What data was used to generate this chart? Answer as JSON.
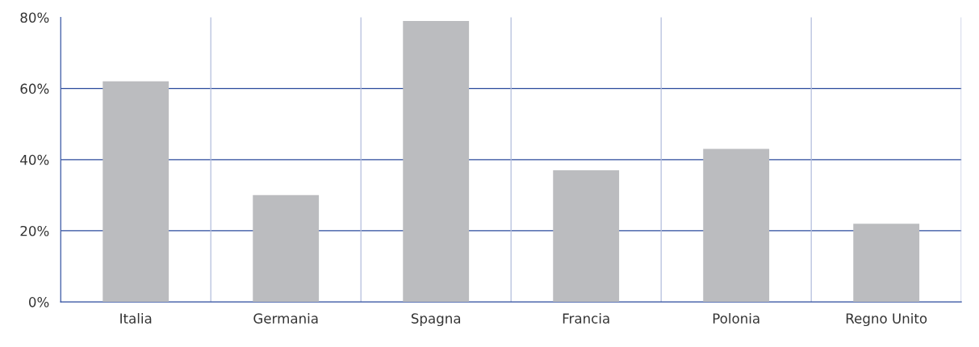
{
  "chart_data": {
    "type": "bar",
    "categories": [
      "Italia",
      "Germania",
      "Spagna",
      "Francia",
      "Polonia",
      "Regno Unito"
    ],
    "values": [
      62,
      30,
      79,
      37,
      43,
      22
    ],
    "color": "#bbbcbf",
    "ylim": [
      0,
      80
    ],
    "yticks": [
      {
        "value": 0,
        "label": "0%"
      },
      {
        "value": 20,
        "label": "20%"
      },
      {
        "value": 40,
        "label": "40%"
      },
      {
        "value": 60,
        "label": "60%"
      },
      {
        "value": 80,
        "label": "80%"
      }
    ],
    "grid": true
  }
}
